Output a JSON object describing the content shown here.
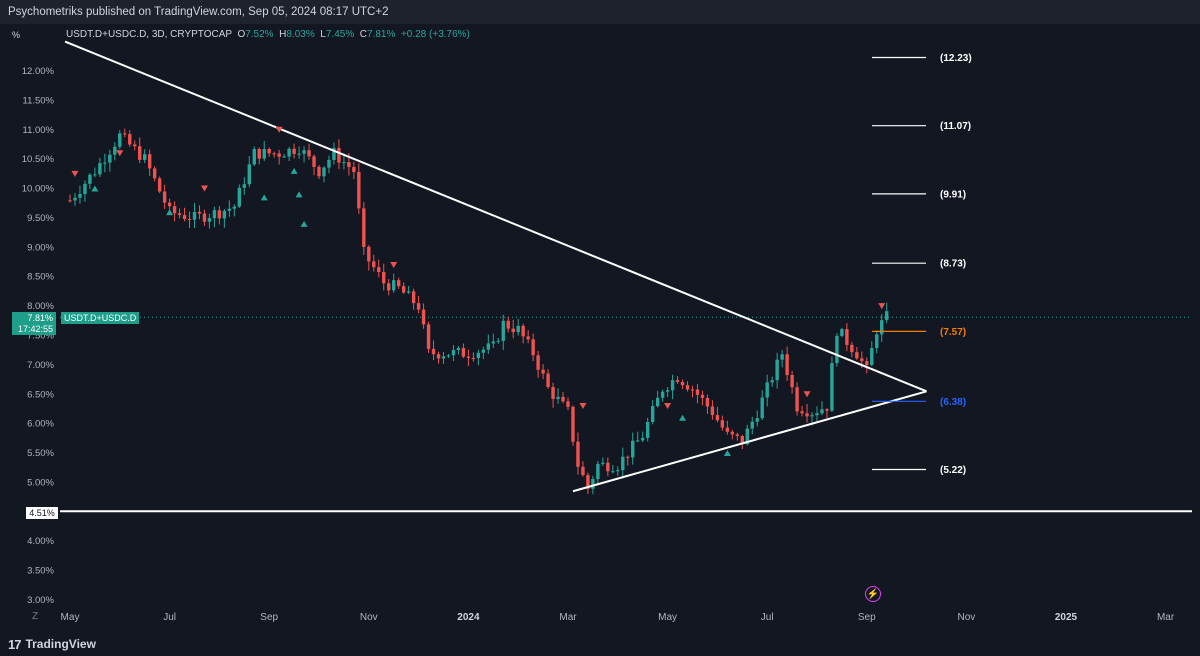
{
  "header": {
    "published_text": "Psychometriks published on TradingView.com, Sep 05, 2024 08:17 UTC+2"
  },
  "symbol_info": {
    "symbol": "USDT.D+USDC.D, 3D, CRYPTOCAP",
    "o_label": "O",
    "o_value": "7.52%",
    "h_label": "H",
    "h_value": "8.03%",
    "l_label": "L",
    "l_value": "7.45%",
    "c_label": "C",
    "c_value": "7.81%",
    "change": "+0.28 (+3.76%)"
  },
  "toolbar": {
    "percent_label": "%",
    "zoom_label": "Z"
  },
  "price_tag": {
    "value": "7.81%",
    "countdown": "17:42:55"
  },
  "symbol_tag": "USDT.D+USDC.D",
  "level_tag": "4.51%",
  "footer": {
    "logo_text": "TradingView",
    "logo_mark": "17"
  },
  "colors": {
    "background": "#131722",
    "up": "#26a69a",
    "down": "#ef5350",
    "line": "#ffffff",
    "level_orange": "#f57c00",
    "level_blue": "#2962ff"
  },
  "icons": [
    "tradingview-logo-icon",
    "lightning-icon",
    "sell-signal-arrow-icon",
    "buy-signal-arrow-icon"
  ],
  "chart_data": {
    "type": "candlestick",
    "ylim": [
      3.0,
      12.4
    ],
    "y_ticks": [
      "12.00%",
      "11.50%",
      "11.00%",
      "10.50%",
      "10.00%",
      "9.50%",
      "9.00%",
      "8.50%",
      "8.00%",
      "7.50%",
      "7.00%",
      "6.50%",
      "6.00%",
      "5.50%",
      "5.00%",
      "4.50%",
      "4.00%",
      "3.50%",
      "3.00%"
    ],
    "x_ticks": [
      {
        "label": "May",
        "month": 0
      },
      {
        "label": "Jul",
        "month": 2
      },
      {
        "label": "Sep",
        "month": 4
      },
      {
        "label": "Nov",
        "month": 6
      },
      {
        "label": "2024",
        "month": 8,
        "bold": true
      },
      {
        "label": "Mar",
        "month": 10
      },
      {
        "label": "May",
        "month": 12
      },
      {
        "label": "Jul",
        "month": 14
      },
      {
        "label": "Sep",
        "month": 16
      },
      {
        "label": "Nov",
        "month": 18
      },
      {
        "label": "2025",
        "month": 20,
        "bold": true
      },
      {
        "label": "Mar",
        "month": 22
      }
    ],
    "x_start_date": "2023-05",
    "series_path": [
      [
        0.0,
        9.8
      ],
      [
        0.5,
        10.3
      ],
      [
        1.0,
        10.9
      ],
      [
        1.5,
        10.5
      ],
      [
        2.0,
        9.6
      ],
      [
        2.5,
        9.5
      ],
      [
        3.0,
        9.6
      ],
      [
        3.3,
        9.7
      ],
      [
        3.7,
        10.6
      ],
      [
        4.2,
        10.6
      ],
      [
        4.6,
        10.7
      ],
      [
        5.0,
        10.3
      ],
      [
        5.3,
        10.6
      ],
      [
        5.7,
        10.3
      ],
      [
        5.9,
        8.9
      ],
      [
        6.3,
        8.4
      ],
      [
        6.6,
        8.3
      ],
      [
        7.0,
        8.0
      ],
      [
        7.2,
        7.2
      ],
      [
        7.6,
        7.2
      ],
      [
        8.0,
        7.2
      ],
      [
        8.5,
        7.3
      ],
      [
        8.7,
        7.7
      ],
      [
        9.0,
        7.6
      ],
      [
        9.3,
        7.2
      ],
      [
        9.6,
        6.6
      ],
      [
        10.0,
        6.2
      ],
      [
        10.2,
        5.3
      ],
      [
        10.4,
        4.9
      ],
      [
        10.6,
        5.3
      ],
      [
        11.0,
        5.3
      ],
      [
        11.5,
        5.8
      ],
      [
        11.9,
        6.6
      ],
      [
        12.2,
        6.8
      ],
      [
        12.5,
        6.6
      ],
      [
        12.9,
        6.2
      ],
      [
        13.2,
        5.8
      ],
      [
        13.5,
        5.7
      ],
      [
        13.8,
        6.2
      ],
      [
        14.0,
        6.6
      ],
      [
        14.3,
        7.2
      ],
      [
        14.6,
        6.3
      ],
      [
        14.9,
        6.2
      ],
      [
        15.2,
        6.3
      ],
      [
        15.4,
        7.6
      ],
      [
        15.6,
        7.4
      ],
      [
        15.8,
        7.2
      ],
      [
        16.0,
        6.9
      ],
      [
        16.2,
        7.6
      ],
      [
        16.4,
        7.81
      ]
    ],
    "trendlines": [
      {
        "name": "descending-resistance",
        "from": [
          -0.1,
          12.5
        ],
        "to": [
          17.2,
          6.55
        ]
      },
      {
        "name": "ascending-support",
        "from": [
          10.1,
          4.85
        ],
        "to": [
          17.2,
          6.55
        ]
      }
    ],
    "horizontal_level": {
      "value": 4.51,
      "label": "4.51%"
    },
    "current_price": 7.81,
    "projection_levels": [
      {
        "value": 12.23,
        "label": "(12.23)",
        "color": "#ffffff"
      },
      {
        "value": 11.07,
        "label": "(11.07)",
        "color": "#ffffff"
      },
      {
        "value": 9.91,
        "label": "(9.91)",
        "color": "#ffffff"
      },
      {
        "value": 8.73,
        "label": "(8.73)",
        "color": "#ffffff"
      },
      {
        "value": 7.57,
        "label": "(7.57)",
        "color": "#f57c00"
      },
      {
        "value": 6.38,
        "label": "(6.38)",
        "color": "#2962ff"
      },
      {
        "value": 5.22,
        "label": "(5.22)",
        "color": "#ffffff"
      }
    ],
    "sell_signals": [
      [
        0.1,
        10.25
      ],
      [
        1.0,
        10.6
      ],
      [
        2.7,
        10.0
      ],
      [
        4.2,
        11.0
      ],
      [
        6.5,
        8.7
      ],
      [
        10.3,
        6.3
      ],
      [
        12.0,
        6.3
      ],
      [
        14.8,
        6.5
      ],
      [
        16.3,
        8.0
      ]
    ],
    "buy_signals": [
      [
        0.5,
        10.0
      ],
      [
        2.0,
        9.6
      ],
      [
        3.9,
        9.85
      ],
      [
        4.5,
        10.3
      ],
      [
        4.6,
        9.9
      ],
      [
        4.7,
        9.4
      ],
      [
        12.3,
        6.1
      ],
      [
        13.2,
        5.5
      ]
    ]
  }
}
